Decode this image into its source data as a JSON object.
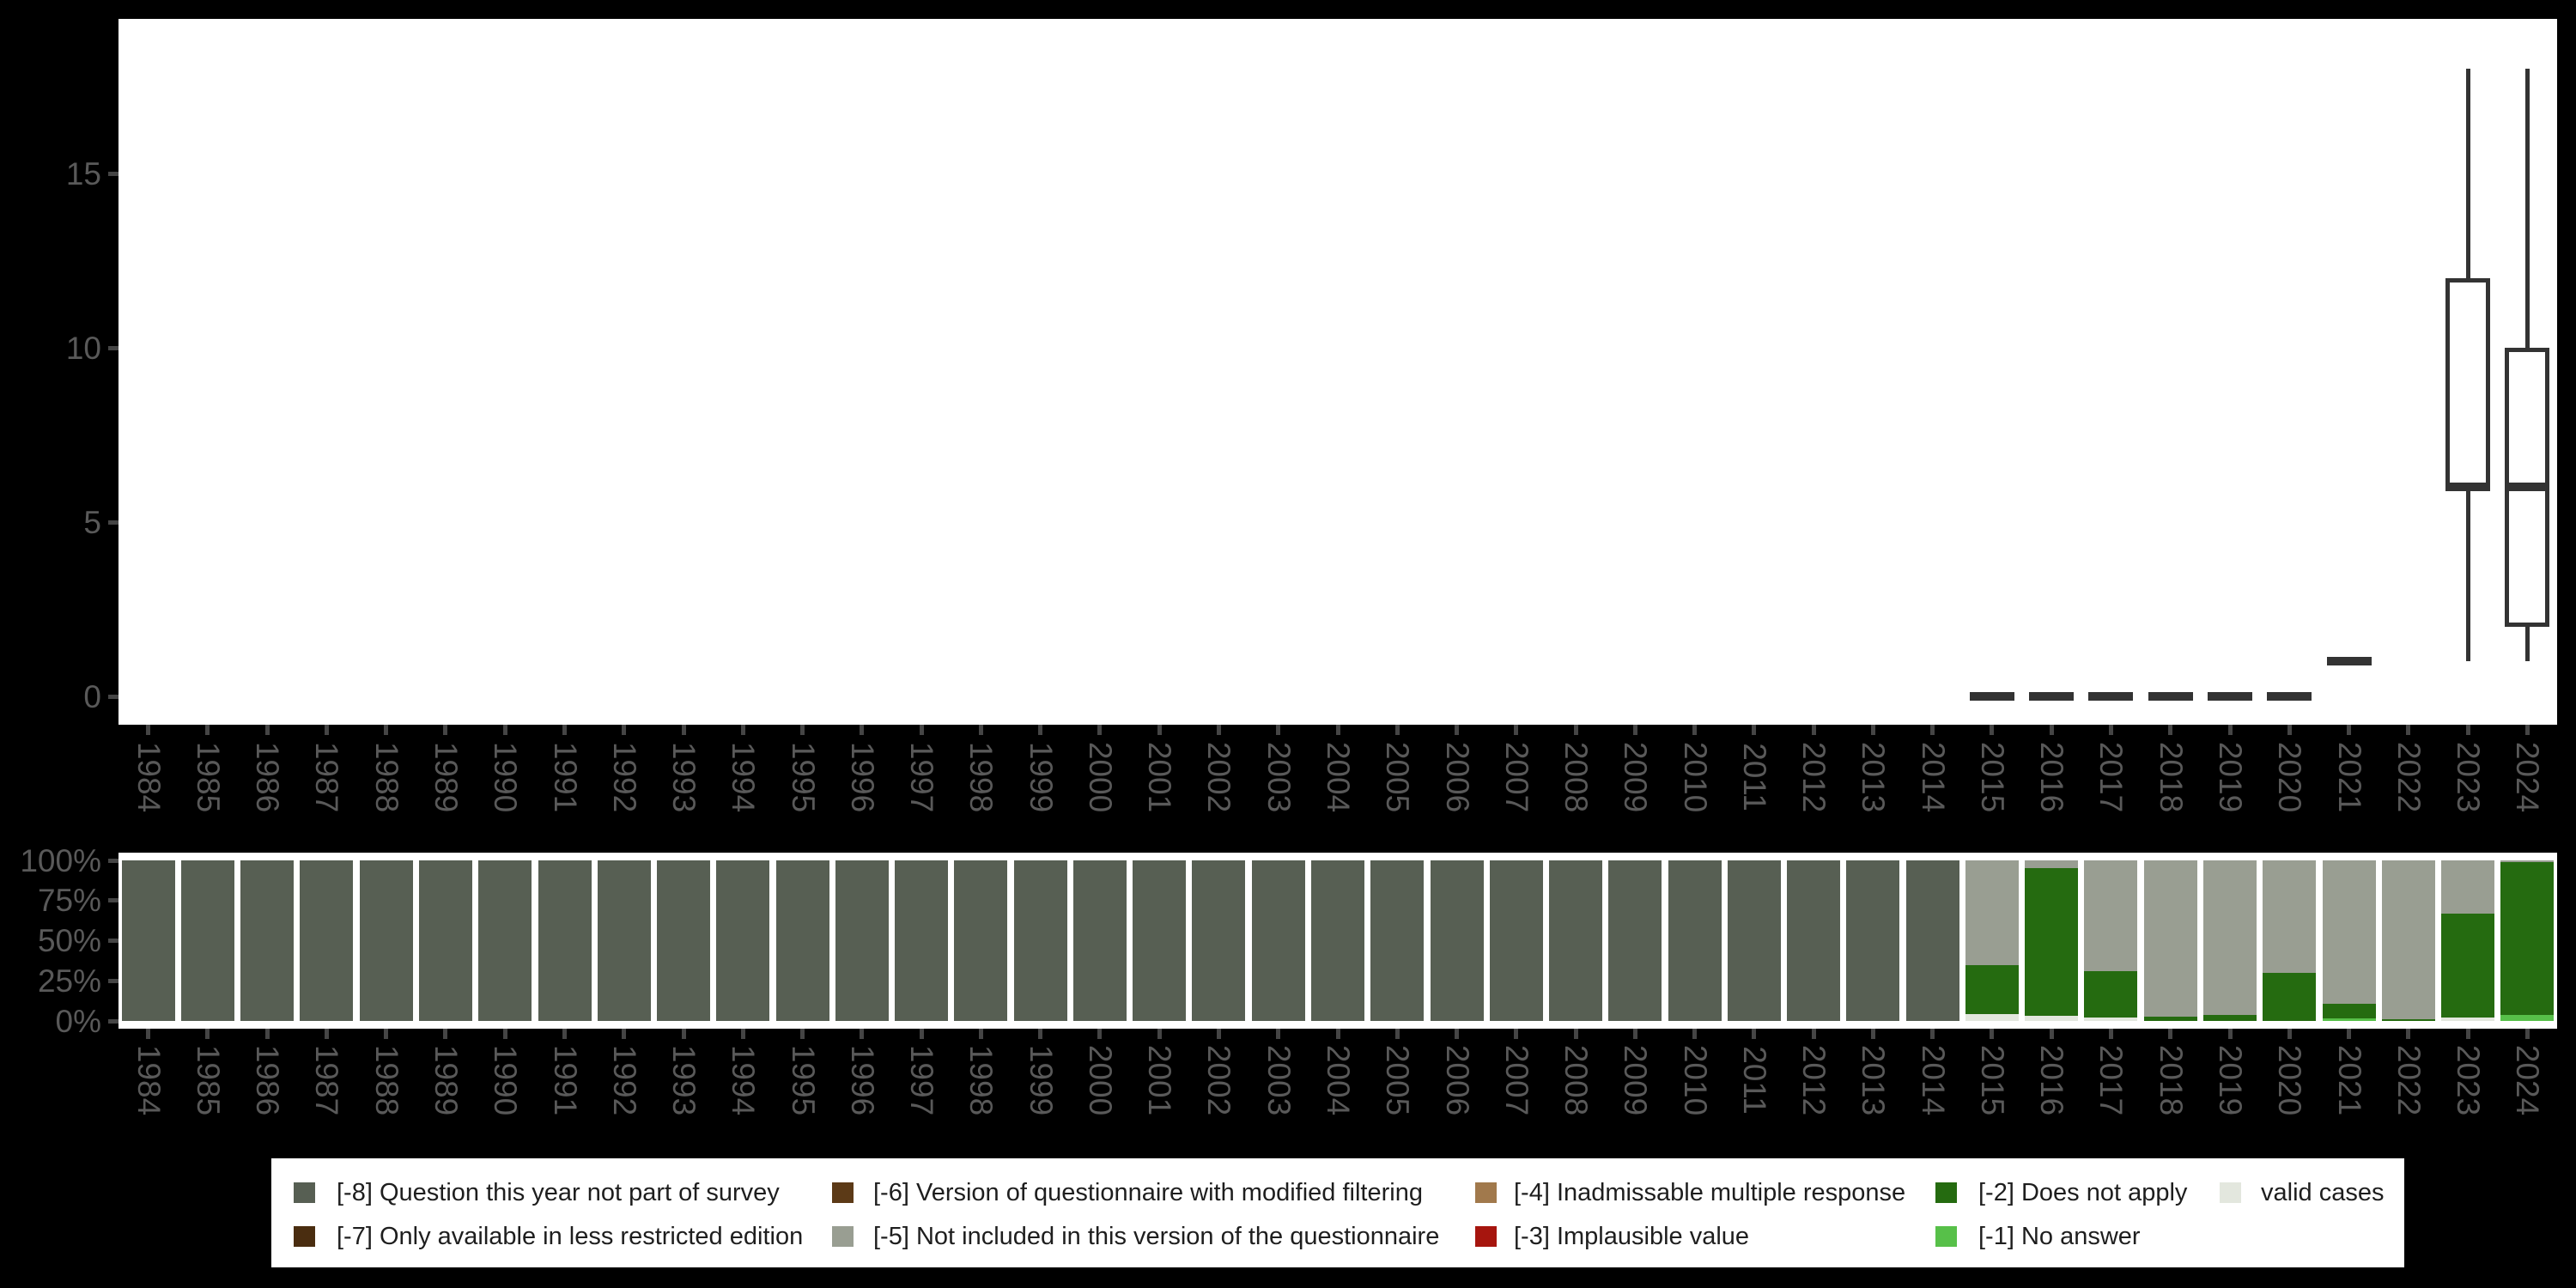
{
  "colors": {
    "-8": "#575f53",
    "-7": "#4a2d10",
    "-6": "#5c3a17",
    "-5": "#999e92",
    "-4": "#a1794c",
    "-3": "#a6150e",
    "-2": "#256b10",
    "-1": "#57c049",
    "valid": "#e3e7de",
    "box_stroke": "#333333",
    "axis_text": "#595959",
    "tick": "#454545",
    "panel_bg": "#ffffff",
    "page_bg": "#000000",
    "legend_text": "#1e1e1e"
  },
  "years": [
    "1984",
    "1985",
    "1986",
    "1987",
    "1988",
    "1989",
    "1990",
    "1991",
    "1992",
    "1993",
    "1994",
    "1995",
    "1996",
    "1997",
    "1998",
    "1999",
    "2000",
    "2001",
    "2002",
    "2003",
    "2004",
    "2005",
    "2006",
    "2007",
    "2008",
    "2009",
    "2010",
    "2011",
    "2012",
    "2013",
    "2014",
    "2015",
    "2016",
    "2017",
    "2018",
    "2019",
    "2020",
    "2021",
    "2022",
    "2023",
    "2024"
  ],
  "chart_data": [
    {
      "type": "boxplot",
      "title": "",
      "xlabel": "",
      "ylabel": "",
      "x_tick_labels": [
        "1984",
        "1985",
        "1986",
        "1987",
        "1988",
        "1989",
        "1990",
        "1991",
        "1992",
        "1993",
        "1994",
        "1995",
        "1996",
        "1997",
        "1998",
        "1999",
        "2000",
        "2001",
        "2002",
        "2003",
        "2004",
        "2005",
        "2006",
        "2007",
        "2008",
        "2009",
        "2010",
        "2011",
        "2012",
        "2013",
        "2014",
        "2015",
        "2016",
        "2017",
        "2018",
        "2019",
        "2020",
        "2021",
        "2022",
        "2023",
        "2024"
      ],
      "y_ticks": [
        0,
        5,
        10,
        15
      ],
      "y_tick_labels": [
        "0",
        "5",
        "10",
        "15"
      ],
      "ylim": [
        0,
        18
      ],
      "grid": false,
      "boxes": [
        {
          "year": "2015",
          "median": 0
        },
        {
          "year": "2016",
          "median": 0
        },
        {
          "year": "2017",
          "median": 0
        },
        {
          "year": "2018",
          "median": 0
        },
        {
          "year": "2019",
          "median": 0
        },
        {
          "year": "2020",
          "median": 0
        },
        {
          "year": "2021",
          "median": 1
        },
        {
          "year": "2023",
          "min": 1,
          "q1": 6,
          "median": 6,
          "q3": 12,
          "max": 18
        },
        {
          "year": "2024",
          "min": 1,
          "q1": 2,
          "median": 6,
          "q3": 10,
          "max": 18
        }
      ]
    },
    {
      "type": "bar",
      "subtype": "stacked-100pct",
      "title": "",
      "xlabel": "",
      "ylabel": "",
      "categories": [
        "1984",
        "1985",
        "1986",
        "1987",
        "1988",
        "1989",
        "1990",
        "1991",
        "1992",
        "1993",
        "1994",
        "1995",
        "1996",
        "1997",
        "1998",
        "1999",
        "2000",
        "2001",
        "2002",
        "2003",
        "2004",
        "2005",
        "2006",
        "2007",
        "2008",
        "2009",
        "2010",
        "2011",
        "2012",
        "2013",
        "2014",
        "2015",
        "2016",
        "2017",
        "2018",
        "2019",
        "2020",
        "2021",
        "2022",
        "2023",
        "2024"
      ],
      "y_ticks": [
        0,
        25,
        50,
        75,
        100
      ],
      "y_tick_labels": [
        "0%",
        "25%",
        "50%",
        "75%",
        "100%"
      ],
      "ylim": [
        0,
        100
      ],
      "grid": false,
      "legend_position": "bottom",
      "bars_segments_bottom_to_top": [
        [
          [
            "-8",
            100
          ]
        ],
        [
          [
            "-8",
            100
          ]
        ],
        [
          [
            "-8",
            100
          ]
        ],
        [
          [
            "-8",
            100
          ]
        ],
        [
          [
            "-8",
            100
          ]
        ],
        [
          [
            "-8",
            100
          ]
        ],
        [
          [
            "-8",
            100
          ]
        ],
        [
          [
            "-8",
            100
          ]
        ],
        [
          [
            "-8",
            100
          ]
        ],
        [
          [
            "-8",
            100
          ]
        ],
        [
          [
            "-8",
            100
          ]
        ],
        [
          [
            "-8",
            100
          ]
        ],
        [
          [
            "-8",
            100
          ]
        ],
        [
          [
            "-8",
            100
          ]
        ],
        [
          [
            "-8",
            100
          ]
        ],
        [
          [
            "-8",
            100
          ]
        ],
        [
          [
            "-8",
            100
          ]
        ],
        [
          [
            "-8",
            100
          ]
        ],
        [
          [
            "-8",
            100
          ]
        ],
        [
          [
            "-8",
            100
          ]
        ],
        [
          [
            "-8",
            100
          ]
        ],
        [
          [
            "-8",
            100
          ]
        ],
        [
          [
            "-8",
            100
          ]
        ],
        [
          [
            "-8",
            100
          ]
        ],
        [
          [
            "-8",
            100
          ]
        ],
        [
          [
            "-8",
            100
          ]
        ],
        [
          [
            "-8",
            100
          ]
        ],
        [
          [
            "-8",
            100
          ]
        ],
        [
          [
            "-8",
            100
          ]
        ],
        [
          [
            "-8",
            100
          ]
        ],
        [
          [
            "-8",
            100
          ]
        ],
        [
          [
            "valid",
            4.5
          ],
          [
            "-2",
            30
          ],
          [
            "-5",
            65.5
          ]
        ],
        [
          [
            "valid",
            3
          ],
          [
            "-2",
            92
          ],
          [
            "-5",
            5
          ]
        ],
        [
          [
            "valid",
            2
          ],
          [
            "-2",
            29
          ],
          [
            "-5",
            69
          ]
        ],
        [
          [
            "-2",
            2.5
          ],
          [
            "-5",
            97.5
          ]
        ],
        [
          [
            "-2",
            4
          ],
          [
            "-5",
            96
          ]
        ],
        [
          [
            "-2",
            30
          ],
          [
            "-5",
            70
          ]
        ],
        [
          [
            "-1",
            1.5
          ],
          [
            "-2",
            9
          ],
          [
            "-5",
            89.5
          ]
        ],
        [
          [
            "-2",
            1.3
          ],
          [
            "-5",
            98.7
          ]
        ],
        [
          [
            "valid",
            2
          ],
          [
            "-2",
            65
          ],
          [
            "-5",
            33
          ]
        ],
        [
          [
            "-1",
            3.5
          ],
          [
            "-2",
            95.5
          ],
          [
            "-5",
            1
          ]
        ]
      ]
    }
  ],
  "legend": {
    "items": [
      {
        "key": "-8",
        "label": "[-8] Question this year not part of survey",
        "row": 1,
        "col": 1
      },
      {
        "key": "-7",
        "label": "[-7] Only available in less restricted edition",
        "row": 2,
        "col": 1
      },
      {
        "key": "-6",
        "label": "[-6] Version of questionnaire with modified filtering",
        "row": 1,
        "col": 2
      },
      {
        "key": "-5",
        "label": "[-5] Not included in this version of the questionnaire",
        "row": 2,
        "col": 2
      },
      {
        "key": "-4",
        "label": "[-4] Inadmissable multiple response",
        "row": 1,
        "col": 3
      },
      {
        "key": "-3",
        "label": "[-3] Implausible value",
        "row": 2,
        "col": 3
      },
      {
        "key": "-2",
        "label": "[-2] Does not apply",
        "row": 1,
        "col": 4
      },
      {
        "key": "-1",
        "label": "[-1] No answer",
        "row": 2,
        "col": 4
      },
      {
        "key": "valid",
        "label": "valid cases",
        "row": 1,
        "col": 5
      }
    ]
  }
}
